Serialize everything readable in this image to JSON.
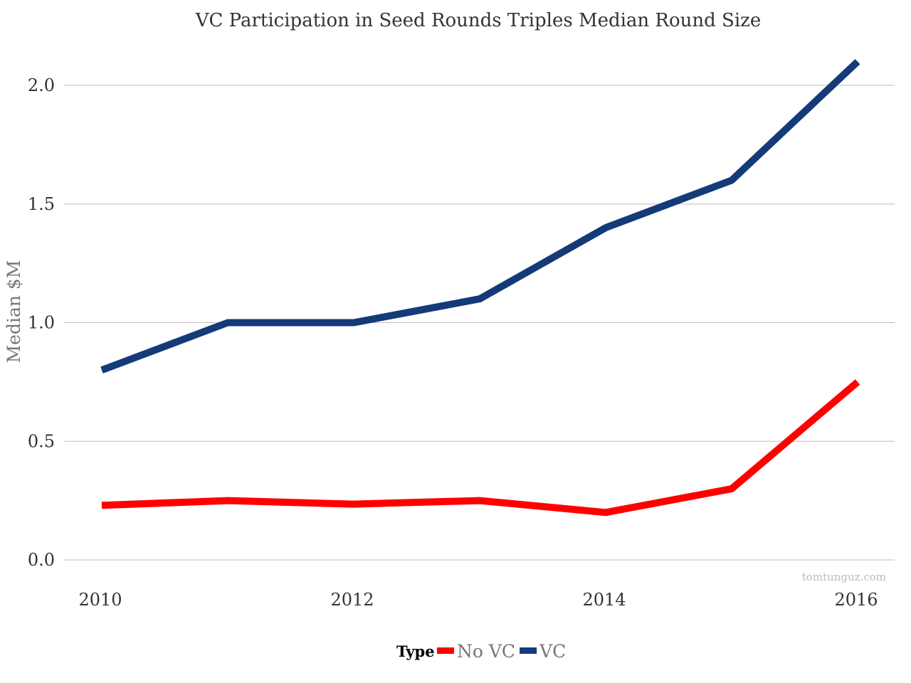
{
  "chart_data": {
    "type": "line",
    "title": "VC Participation in Seed Rounds Triples Median Round Size",
    "xlabel": "",
    "ylabel": "Median $M",
    "x": [
      2010,
      2011,
      2012,
      2013,
      2014,
      2015,
      2016
    ],
    "x_ticks": [
      "2010",
      "2012",
      "2014",
      "2016"
    ],
    "y_ticks": [
      "0.0",
      "0.5",
      "1.0",
      "1.5",
      "2.0"
    ],
    "xlim": [
      2010,
      2016
    ],
    "ylim": [
      0,
      2.1
    ],
    "grid": "horizontal",
    "legend": {
      "title": "Type",
      "position": "bottom"
    },
    "series": [
      {
        "name": "No VC",
        "color": "#ff0000",
        "values": [
          0.23,
          0.25,
          0.235,
          0.25,
          0.2,
          0.3,
          0.75
        ]
      },
      {
        "name": "VC",
        "color": "#143b78",
        "values": [
          0.8,
          1.0,
          1.0,
          1.1,
          1.4,
          1.6,
          2.1
        ]
      }
    ],
    "watermark": "tomtunguz.com"
  }
}
